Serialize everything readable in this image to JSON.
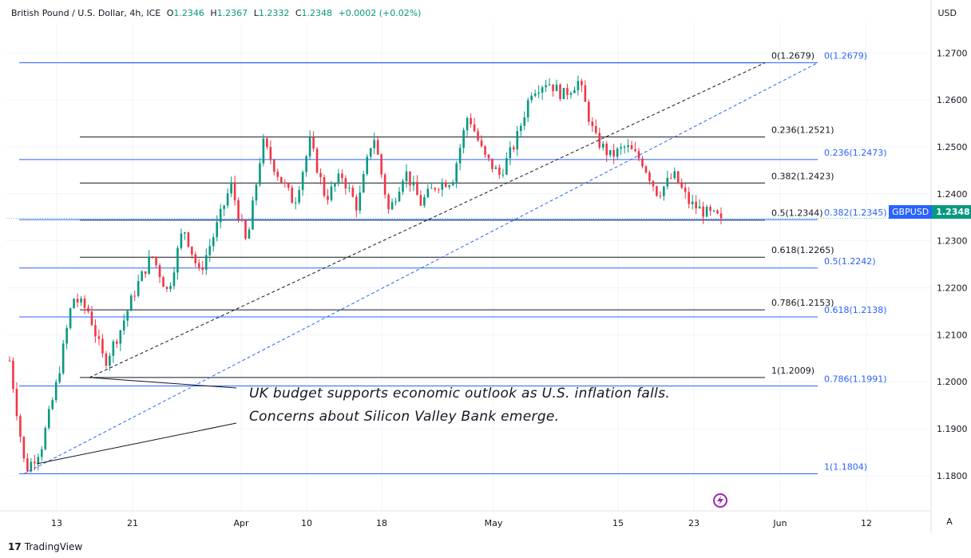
{
  "header": {
    "instrument": "British Pound / U.S. Dollar, 4h, ICE",
    "open_label": "O",
    "open": "1.2346",
    "high_label": "H",
    "high": "1.2367",
    "low_label": "L",
    "low": "1.2332",
    "close_label": "C",
    "close": "1.2348",
    "change": "+0.0002 (+0.02%)"
  },
  "currency": "USD",
  "price_tag": {
    "symbol": "GBPUSD",
    "price": "1.2348"
  },
  "annotation": {
    "line1": "UK budget supports economic outlook as U.S. inflation falls.",
    "line2": "Concerns about Silicon Valley Bank emerge."
  },
  "footer": {
    "brand": "TradingView",
    "logo_text": "17"
  },
  "autoscale_label": "A",
  "chart_data": {
    "type": "candlestick",
    "title": "British Pound / U.S. Dollar, 4h, ICE",
    "ylim": [
      1.1725,
      1.2765
    ],
    "y_ticks": [
      "1.2700",
      "1.2600",
      "1.2500",
      "1.2400",
      "1.2300",
      "1.2200",
      "1.2100",
      "1.2000",
      "1.1900",
      "1.1800"
    ],
    "x_ticks": [
      "13",
      "21",
      "Apr",
      "10",
      "18",
      "May",
      "15",
      "23",
      "Jun",
      "12"
    ],
    "colors": {
      "up": "#089981",
      "down": "#f23645",
      "fib_black": "#131722",
      "fib_blue": "#2962ff"
    },
    "price_path": [
      1.2045,
      1.181,
      1.186,
      1.2,
      1.218,
      1.215,
      1.204,
      1.211,
      1.22,
      1.227,
      1.219,
      1.233,
      1.223,
      1.232,
      1.242,
      1.229,
      1.251,
      1.244,
      1.238,
      1.251,
      1.239,
      1.244,
      1.237,
      1.253,
      1.236,
      1.245,
      1.238,
      1.242,
      1.243,
      1.257,
      1.248,
      1.244,
      1.251,
      1.262,
      1.264,
      1.261,
      1.264,
      1.252,
      1.248,
      1.25,
      1.247,
      1.24,
      1.244,
      1.238,
      1.236,
      1.2347
    ],
    "current_price": 1.2348,
    "fib_black": {
      "levels": [
        {
          "label": "0(1.2679)",
          "value": 1.2679
        },
        {
          "label": "0.236(1.2521)",
          "value": 1.2521
        },
        {
          "label": "0.382(1.2423)",
          "value": 1.2423
        },
        {
          "label": "0.5(1.2344)",
          "value": 1.2344
        },
        {
          "label": "0.618(1.2265)",
          "value": 1.2265
        },
        {
          "label": "0.786(1.2153)",
          "value": 1.2153
        },
        {
          "label": "1(1.2009)",
          "value": 1.2009
        }
      ]
    },
    "fib_blue": {
      "levels": [
        {
          "label": "0(1.2679)",
          "value": 1.2679
        },
        {
          "label": "0.236(1.2473)",
          "value": 1.2473
        },
        {
          "label": "0.382(1.2345)",
          "value": 1.2345
        },
        {
          "label": "0.5(1.2242)",
          "value": 1.2242
        },
        {
          "label": "0.618(1.2138)",
          "value": 1.2138
        },
        {
          "label": "0.786(1.1991)",
          "value": 1.1991
        },
        {
          "label": "1(1.1804)",
          "value": 1.1804
        }
      ]
    }
  }
}
